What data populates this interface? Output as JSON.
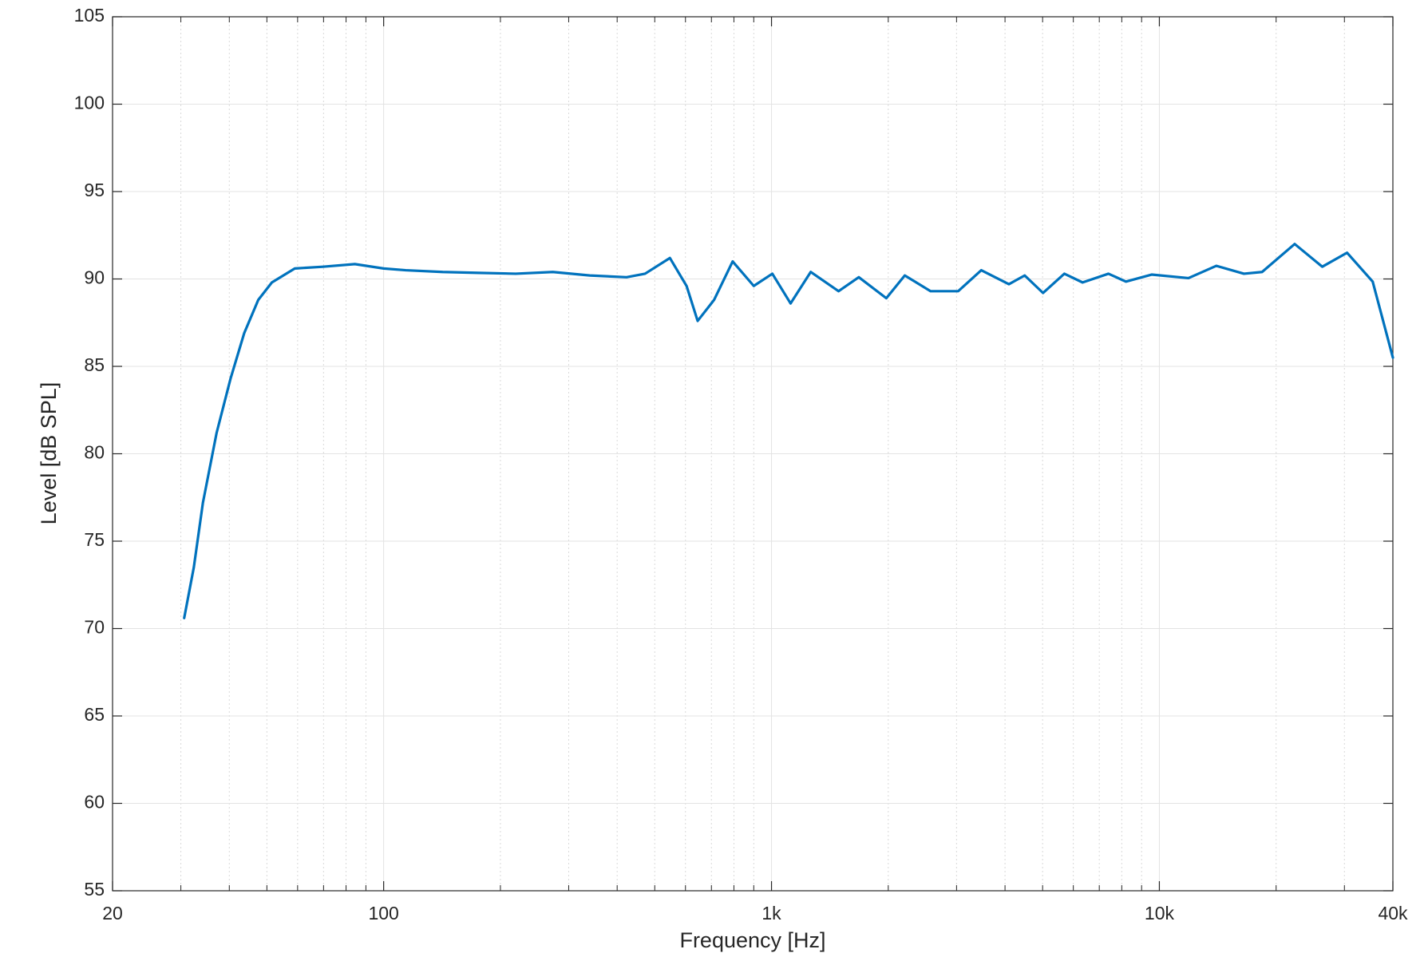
{
  "chart_data": {
    "type": "line",
    "xlabel": "Frequency [Hz]",
    "ylabel": "Level [dB SPL]",
    "xscale": "log",
    "grid": true,
    "color": "#0072bd",
    "xlim": [
      20,
      40000
    ],
    "xticks": [
      20,
      100,
      {
        "value": 1000,
        "label": "1k"
      },
      {
        "value": 10000,
        "label": "10k"
      },
      {
        "value": 40000,
        "label": "40k"
      }
    ],
    "xminorticks": [
      30,
      40,
      50,
      60,
      70,
      80,
      90,
      200,
      300,
      400,
      500,
      600,
      700,
      800,
      900,
      2000,
      3000,
      4000,
      5000,
      6000,
      7000,
      8000,
      9000,
      20000,
      30000
    ],
    "ylim": [
      55,
      105
    ],
    "yticks": [
      55,
      60,
      65,
      70,
      75,
      80,
      85,
      90,
      95,
      100,
      105
    ],
    "x": [
      30.6,
      32.4,
      34.2,
      37.1,
      40.3,
      43.7,
      47.5,
      51.5,
      59,
      69.7,
      84.3,
      100,
      114,
      142,
      176,
      219,
      273,
      340,
      423,
      472,
      547,
      604,
      645,
      711,
      794,
      900,
      1005,
      1120,
      1262,
      1489,
      1679,
      1977,
      2206,
      2572,
      3029,
      3474,
      4093,
      4496,
      5012,
      5689,
      6339,
      7391,
      8199,
      9550,
      11885,
      14020,
      16520,
      18400,
      22330,
      26300,
      30480,
      35480,
      40000
    ],
    "values": [
      70.6,
      73.5,
      77.2,
      81.2,
      84.3,
      86.9,
      88.8,
      89.8,
      90.6,
      90.7,
      90.85,
      90.6,
      90.5,
      90.4,
      90.35,
      90.3,
      90.4,
      90.2,
      90.1,
      90.3,
      91.2,
      89.6,
      87.6,
      88.8,
      91.0,
      89.6,
      90.3,
      88.6,
      90.4,
      89.3,
      90.1,
      88.9,
      90.2,
      89.3,
      89.3,
      90.5,
      89.7,
      90.2,
      89.2,
      90.3,
      89.8,
      90.3,
      89.85,
      90.25,
      90.05,
      90.75,
      90.3,
      90.4,
      92.0,
      90.7,
      91.5,
      89.85,
      85.5
    ]
  }
}
